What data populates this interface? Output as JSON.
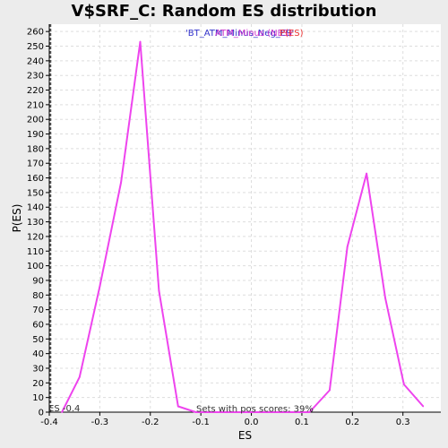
{
  "chart_data": {
    "type": "line",
    "title": "V$SRF_C: Random ES distribution",
    "xlabel": "ES",
    "ylabel": "P(ES)",
    "xlim": [
      -0.4,
      0.375
    ],
    "ylim": [
      0,
      265
    ],
    "x_ticks": [
      -0.4,
      -0.3,
      -0.2,
      -0.1,
      0.0,
      0.1,
      0.2,
      0.3
    ],
    "x_tick_labels": [
      "-0.4",
      "-0.3",
      "-0.2",
      "-0.1",
      "0.0",
      "0.1",
      "0.2",
      "0.3"
    ],
    "y_ticks": [
      0,
      10,
      20,
      30,
      40,
      50,
      60,
      70,
      80,
      90,
      100,
      110,
      120,
      130,
      140,
      150,
      160,
      170,
      180,
      190,
      200,
      210,
      220,
      230,
      240,
      250,
      260
    ],
    "grid": true,
    "legend": {
      "placement": "top-center",
      "entries": [
        {
          "text": "'BT_ATM_Minus_Neg_ES'",
          "color": "#3333cc"
        },
        {
          "text": "ATM_Minus (NES)",
          "color": "#cc33cc"
        },
        {
          "text": "P(ES)",
          "color": "#ee3333"
        }
      ]
    },
    "series": [
      {
        "color": "#ee44ee",
        "x": [
          -0.375,
          -0.34,
          -0.3,
          -0.258,
          -0.22,
          -0.183,
          -0.145,
          -0.11,
          -0.07,
          -0.035,
          0.0,
          0.035,
          0.075,
          0.115,
          0.155,
          0.19,
          0.228,
          0.265,
          0.302,
          0.34
        ],
        "y": [
          0,
          24,
          86,
          157,
          253,
          83,
          4,
          0,
          0,
          0,
          0,
          0,
          0,
          0,
          15,
          113,
          163,
          78,
          19,
          4
        ]
      }
    ],
    "reference_line": {
      "x": -0.4,
      "style": "dashed",
      "color": "#555555"
    },
    "annotations": {
      "es_marker": "ES -0.4",
      "sets_text": "Sets with pos scores: 39%"
    }
  }
}
